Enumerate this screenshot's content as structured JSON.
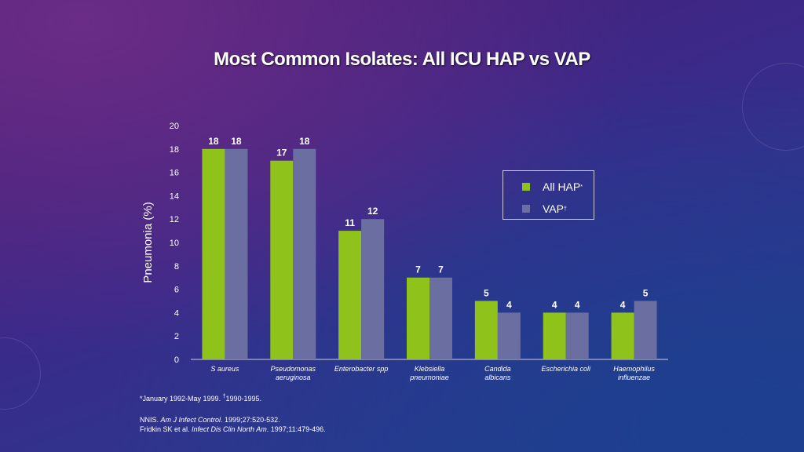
{
  "title": "Most Common Isolates: All ICU HAP vs VAP",
  "colors": {
    "hap": "#8fc21b",
    "vap": "#6a6ea0",
    "axis": "#d0d0e0"
  },
  "chart_data": {
    "type": "bar",
    "ylabel": "Pneumonia (%)",
    "ylim": [
      0,
      20
    ],
    "yticks": [
      0,
      2,
      4,
      6,
      8,
      10,
      12,
      14,
      16,
      18,
      20
    ],
    "categories": [
      [
        "S aureus"
      ],
      [
        "Pseudomonas",
        "aeruginosa"
      ],
      [
        "Enterobacter spp"
      ],
      [
        "Klebsiella",
        "pneumoniae"
      ],
      [
        "Candida",
        "albicans"
      ],
      [
        "Escherichia coli"
      ],
      [
        "Haemophilus",
        "influenzae"
      ]
    ],
    "series": [
      {
        "name": "All HAP",
        "sup": "*",
        "values": [
          18,
          17,
          11,
          7,
          5,
          4,
          4
        ]
      },
      {
        "name": "VAP",
        "sup": "†",
        "values": [
          18,
          18,
          12,
          7,
          4,
          4,
          5
        ]
      }
    ],
    "legend_position": "top-right",
    "grid": false
  },
  "footnote": {
    "text1": "*January 1992-May 1999. ",
    "sup": "†",
    "text2": "1990-1995."
  },
  "refs": [
    {
      "pre": "NNIS. ",
      "italic": "Am J Infect Control",
      "post": ". 1999;27:520-532."
    },
    {
      "pre": "Fridkin SK et al. ",
      "italic": "Infect Dis Clin North Am",
      "post": ". 1997;11:479-496."
    }
  ]
}
